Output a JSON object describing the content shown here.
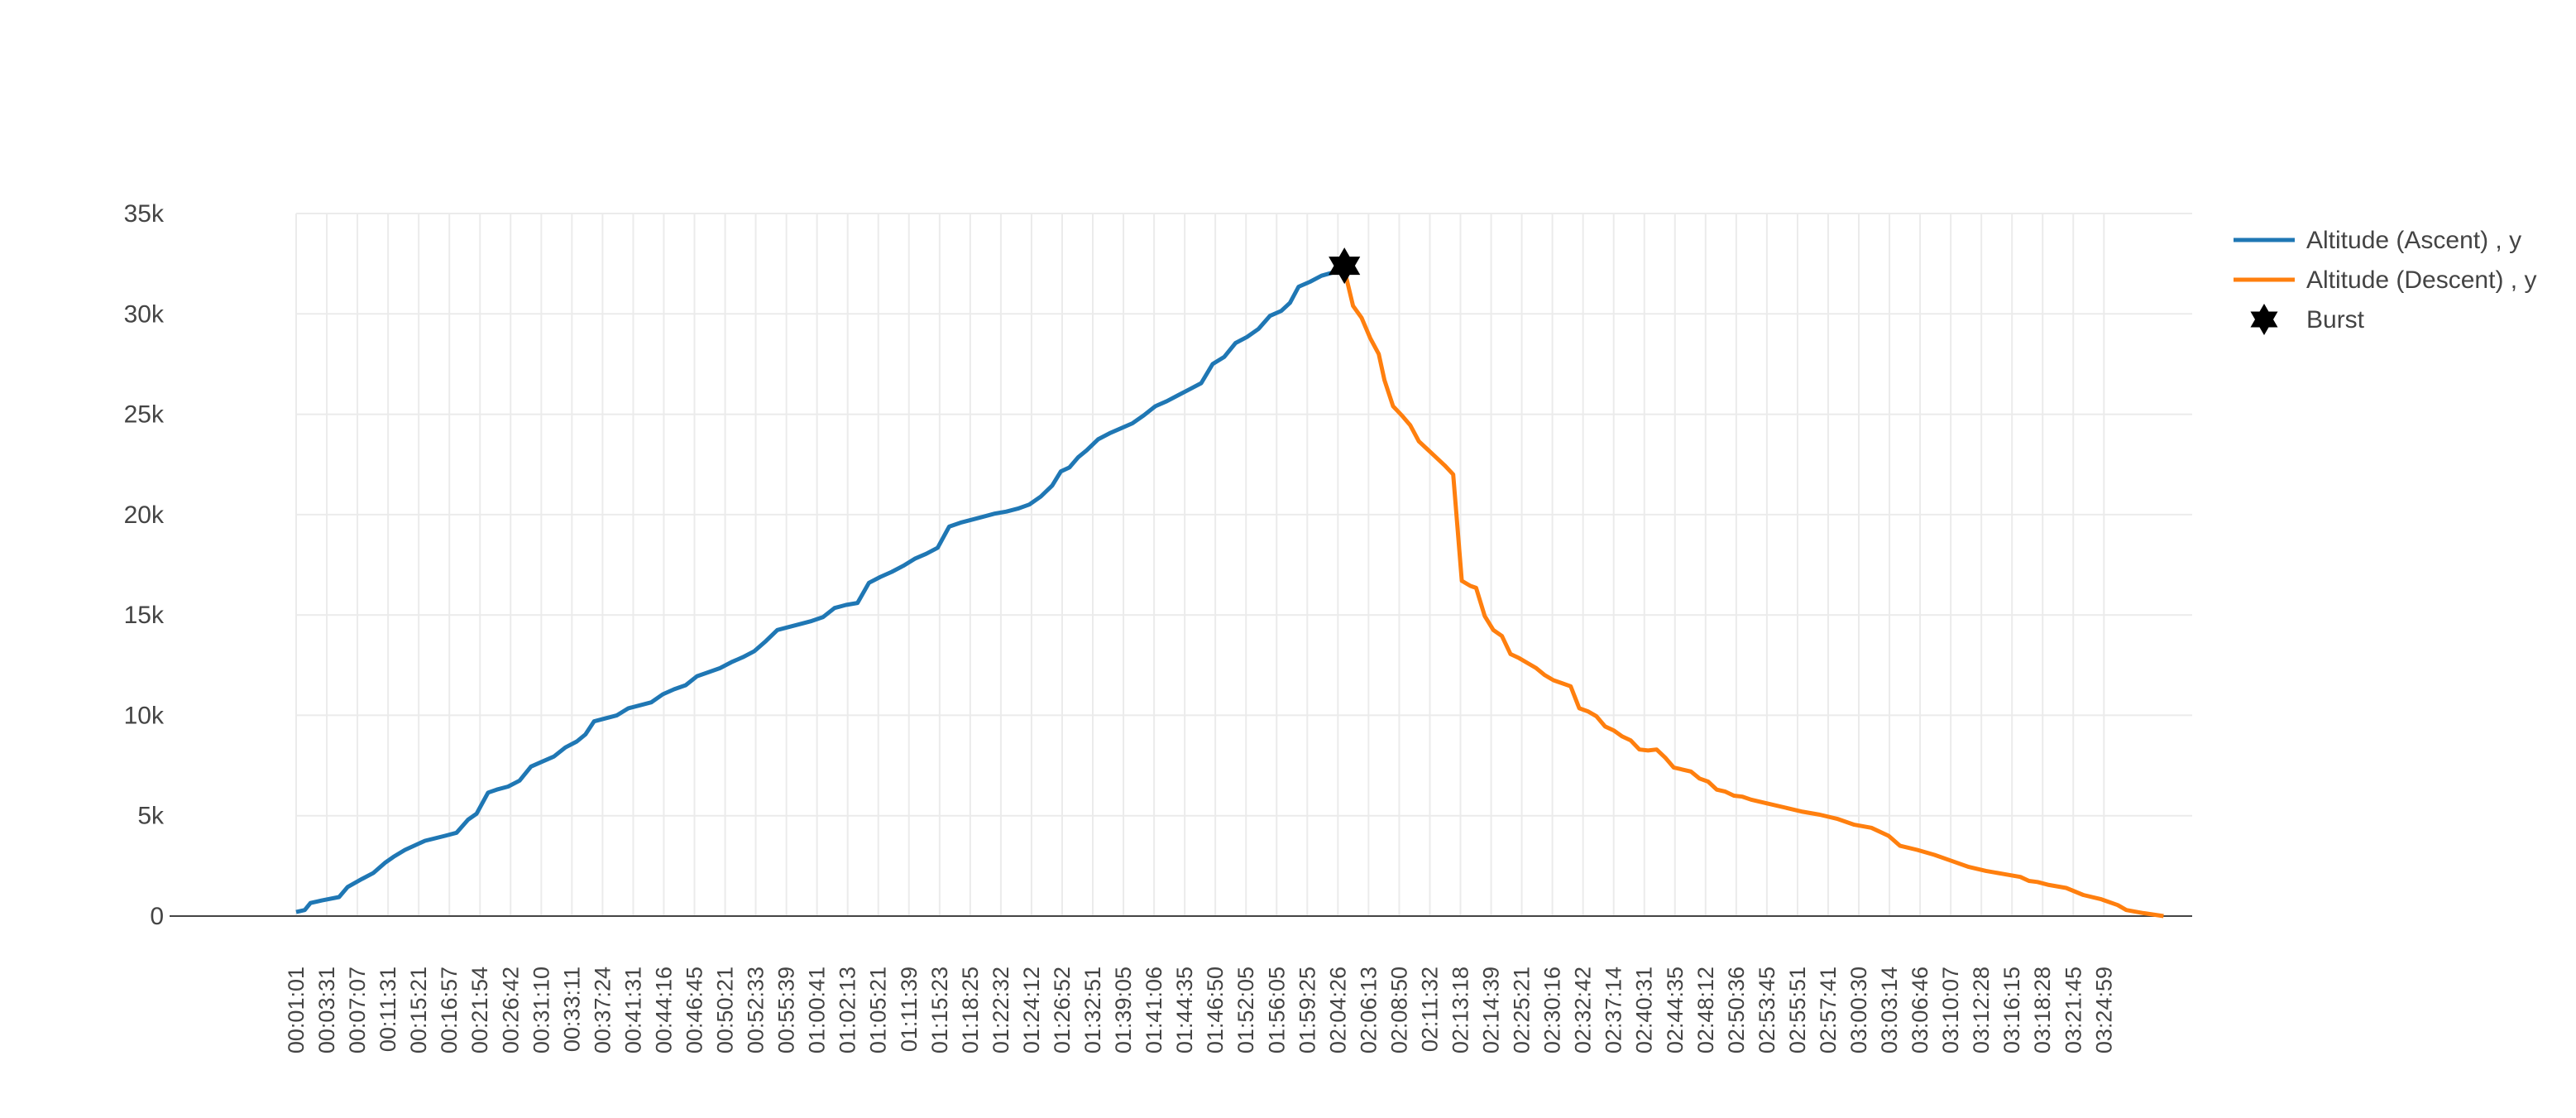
{
  "chart_data": {
    "type": "line",
    "title": "",
    "xlabel": "",
    "ylabel": "",
    "ylim": [
      0,
      35000
    ],
    "y_ticks": [
      0,
      5000,
      10000,
      15000,
      20000,
      25000,
      30000,
      35000
    ],
    "y_tick_labels": [
      "0",
      "5k",
      "10k",
      "15k",
      "20k",
      "25k",
      "30k",
      "35k"
    ],
    "x_tick_labels": [
      "00:01:01",
      "00:03:31",
      "00:07:07",
      "00:11:31",
      "00:15:21",
      "00:16:57",
      "00:21:54",
      "00:26:42",
      "00:31:10",
      "00:33:11",
      "00:37:24",
      "00:41:31",
      "00:44:16",
      "00:46:45",
      "00:50:21",
      "00:52:33",
      "00:55:39",
      "01:00:41",
      "01:02:13",
      "01:05:21",
      "01:11:39",
      "01:15:23",
      "01:18:25",
      "01:22:32",
      "01:24:12",
      "01:26:52",
      "01:32:51",
      "01:39:05",
      "01:41:06",
      "01:44:35",
      "01:46:50",
      "01:52:05",
      "01:56:05",
      "01:59:25",
      "02:04:26",
      "02:06:13",
      "02:08:50",
      "02:11:32",
      "02:13:18",
      "02:14:39",
      "02:25:21",
      "02:30:16",
      "02:32:42",
      "02:37:14",
      "02:40:31",
      "02:44:35",
      "02:48:12",
      "02:50:36",
      "02:53:45",
      "02:55:51",
      "02:57:41",
      "03:00:30",
      "03:03:14",
      "03:06:46",
      "03:10:07",
      "03:12:28",
      "03:16:15",
      "03:18:28",
      "03:21:45",
      "03:24:59"
    ],
    "grid": true,
    "legend_position": "top-right",
    "series": [
      {
        "name": "Altitude (Ascent) , y",
        "color": "#1f77b4",
        "points": [
          [
            0,
            200
          ],
          [
            0.3,
            300
          ],
          [
            0.5,
            650
          ],
          [
            0.9,
            780
          ],
          [
            1.5,
            950
          ],
          [
            1.8,
            1450
          ],
          [
            2.3,
            1850
          ],
          [
            2.7,
            2150
          ],
          [
            3.1,
            2650
          ],
          [
            3.4,
            2950
          ],
          [
            3.8,
            3300
          ],
          [
            4.5,
            3750
          ],
          [
            5.2,
            4000
          ],
          [
            5.6,
            4150
          ],
          [
            6.0,
            4800
          ],
          [
            6.3,
            5100
          ],
          [
            6.7,
            6150
          ],
          [
            7.0,
            6300
          ],
          [
            7.4,
            6450
          ],
          [
            7.8,
            6750
          ],
          [
            8.2,
            7450
          ],
          [
            8.6,
            7700
          ],
          [
            9.0,
            7950
          ],
          [
            9.4,
            8400
          ],
          [
            9.8,
            8700
          ],
          [
            10.1,
            9050
          ],
          [
            10.4,
            9700
          ],
          [
            10.8,
            9850
          ],
          [
            11.2,
            10000
          ],
          [
            11.6,
            10350
          ],
          [
            12.0,
            10500
          ],
          [
            12.4,
            10650
          ],
          [
            12.8,
            11050
          ],
          [
            13.2,
            11300
          ],
          [
            13.6,
            11500
          ],
          [
            14.0,
            11950
          ],
          [
            14.4,
            12150
          ],
          [
            14.8,
            12350
          ],
          [
            15.2,
            12650
          ],
          [
            15.6,
            12900
          ],
          [
            16.0,
            13200
          ],
          [
            16.4,
            13700
          ],
          [
            16.8,
            14250
          ],
          [
            17.2,
            14400
          ],
          [
            17.6,
            14550
          ],
          [
            18.0,
            14700
          ],
          [
            18.4,
            14900
          ],
          [
            18.8,
            15350
          ],
          [
            19.2,
            15500
          ],
          [
            19.6,
            15600
          ],
          [
            20.0,
            16600
          ],
          [
            20.4,
            16900
          ],
          [
            20.8,
            17150
          ],
          [
            21.2,
            17450
          ],
          [
            21.6,
            17800
          ],
          [
            22.0,
            18050
          ],
          [
            22.4,
            18350
          ],
          [
            22.8,
            19400
          ],
          [
            23.2,
            19600
          ],
          [
            23.6,
            19750
          ],
          [
            24.0,
            19900
          ],
          [
            24.4,
            20050
          ],
          [
            24.8,
            20150
          ],
          [
            25.2,
            20300
          ],
          [
            25.6,
            20500
          ],
          [
            26.0,
            20900
          ],
          [
            26.4,
            21450
          ],
          [
            26.7,
            22150
          ],
          [
            27.0,
            22350
          ],
          [
            27.3,
            22850
          ],
          [
            27.6,
            23200
          ],
          [
            28.0,
            23750
          ],
          [
            28.4,
            24050
          ],
          [
            28.8,
            24300
          ],
          [
            29.2,
            24550
          ],
          [
            29.6,
            24950
          ],
          [
            30.0,
            25400
          ],
          [
            30.4,
            25650
          ],
          [
            30.8,
            25950
          ],
          [
            31.2,
            26250
          ],
          [
            31.6,
            26550
          ],
          [
            32.0,
            27500
          ],
          [
            32.4,
            27850
          ],
          [
            32.8,
            28550
          ],
          [
            33.2,
            28850
          ],
          [
            33.6,
            29250
          ],
          [
            34.0,
            29900
          ],
          [
            34.4,
            30150
          ],
          [
            34.7,
            30550
          ],
          [
            35.0,
            31350
          ],
          [
            35.4,
            31600
          ],
          [
            35.8,
            31900
          ],
          [
            36.3,
            32100
          ],
          [
            36.6,
            32200
          ]
        ]
      },
      {
        "name": "Altitude (Descent) , y",
        "color": "#ff7f0e",
        "points": [
          [
            36.6,
            32200
          ],
          [
            36.9,
            30400
          ],
          [
            37.2,
            29800
          ],
          [
            37.5,
            28800
          ],
          [
            37.8,
            28000
          ],
          [
            38.0,
            26700
          ],
          [
            38.3,
            25400
          ],
          [
            38.6,
            24950
          ],
          [
            38.9,
            24450
          ],
          [
            39.2,
            23650
          ],
          [
            39.5,
            23250
          ],
          [
            39.8,
            22850
          ],
          [
            40.1,
            22450
          ],
          [
            40.4,
            22000
          ],
          [
            40.7,
            16700
          ],
          [
            41.0,
            16450
          ],
          [
            41.2,
            16350
          ],
          [
            41.5,
            14950
          ],
          [
            41.8,
            14250
          ],
          [
            42.1,
            13950
          ],
          [
            42.4,
            13050
          ],
          [
            42.7,
            12850
          ],
          [
            43.0,
            12600
          ],
          [
            43.3,
            12350
          ],
          [
            43.6,
            12000
          ],
          [
            43.9,
            11750
          ],
          [
            44.2,
            11600
          ],
          [
            44.5,
            11450
          ],
          [
            44.8,
            10350
          ],
          [
            45.1,
            10200
          ],
          [
            45.4,
            9950
          ],
          [
            45.7,
            9450
          ],
          [
            46.0,
            9250
          ],
          [
            46.3,
            8950
          ],
          [
            46.6,
            8750
          ],
          [
            46.9,
            8300
          ],
          [
            47.2,
            8250
          ],
          [
            47.5,
            8300
          ],
          [
            47.8,
            7900
          ],
          [
            48.1,
            7400
          ],
          [
            48.4,
            7300
          ],
          [
            48.7,
            7200
          ],
          [
            49.0,
            6850
          ],
          [
            49.3,
            6700
          ],
          [
            49.6,
            6300
          ],
          [
            49.9,
            6200
          ],
          [
            50.2,
            6000
          ],
          [
            50.5,
            5950
          ],
          [
            50.8,
            5800
          ],
          [
            51.4,
            5600
          ],
          [
            52.0,
            5400
          ],
          [
            52.6,
            5200
          ],
          [
            53.2,
            5050
          ],
          [
            53.8,
            4850
          ],
          [
            54.4,
            4550
          ],
          [
            55.0,
            4400
          ],
          [
            55.6,
            4000
          ],
          [
            56.0,
            3500
          ],
          [
            56.6,
            3300
          ],
          [
            57.2,
            3050
          ],
          [
            57.8,
            2750
          ],
          [
            58.4,
            2450
          ],
          [
            59.0,
            2250
          ],
          [
            59.6,
            2100
          ],
          [
            60.2,
            1950
          ],
          [
            60.5,
            1750
          ],
          [
            60.8,
            1700
          ],
          [
            61.2,
            1550
          ],
          [
            61.8,
            1400
          ],
          [
            62.4,
            1050
          ],
          [
            63.0,
            850
          ],
          [
            63.6,
            550
          ],
          [
            63.9,
            300
          ],
          [
            64.5,
            150
          ],
          [
            65.2,
            0
          ]
        ]
      }
    ],
    "markers": [
      {
        "name": "Burst",
        "x": 36.6,
        "y": 32400,
        "symbol": "star-of-david",
        "color": "#000000"
      }
    ]
  }
}
